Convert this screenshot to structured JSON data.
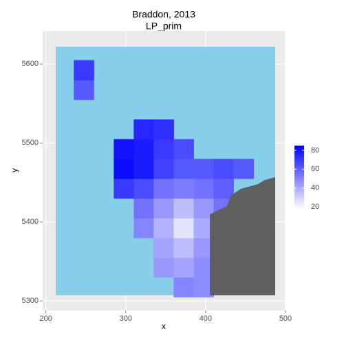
{
  "chart_data": {
    "type": "raster",
    "title": "Braddon, 2013",
    "subtitle": "LP_prim",
    "x_label": "x",
    "y_label": "y",
    "xlim": [
      196,
      500
    ],
    "ylim": [
      5288,
      5642
    ],
    "xticks": [
      200,
      300,
      400,
      500
    ],
    "yticks": [
      5300,
      5400,
      5500,
      5600
    ],
    "grid": true,
    "x": [
      222.5,
      247.5,
      272.5,
      297.5,
      322.5,
      347.5,
      372.5,
      397.5,
      422.5,
      447.5,
      472.5
    ],
    "y": [
      5317.5,
      5342.5,
      5367.5,
      5392.5,
      5417.5,
      5442.5,
      5467.5,
      5492.5,
      5517.5,
      5542.5,
      5567.5,
      5592.5
    ],
    "values": [
      [
        null,
        null,
        null,
        null,
        null,
        null,
        50,
        48,
        null,
        null,
        null
      ],
      [
        null,
        null,
        null,
        null,
        null,
        45,
        42,
        48,
        null,
        null,
        null
      ],
      [
        null,
        null,
        null,
        null,
        null,
        42,
        35,
        45,
        null,
        null,
        null
      ],
      [
        null,
        null,
        null,
        null,
        50,
        38,
        25,
        40,
        null,
        null,
        null
      ],
      [
        null,
        null,
        null,
        null,
        55,
        45,
        35,
        45,
        55,
        null,
        null
      ],
      [
        null,
        null,
        null,
        70,
        65,
        55,
        52,
        55,
        60,
        null,
        null
      ],
      [
        null,
        null,
        null,
        82,
        78,
        68,
        62,
        62,
        65,
        62,
        null
      ],
      [
        null,
        null,
        null,
        80,
        78,
        70,
        65,
        null,
        null,
        null,
        null
      ],
      [
        null,
        null,
        null,
        null,
        75,
        72,
        null,
        null,
        null,
        null,
        null
      ],
      [
        null,
        null,
        null,
        null,
        null,
        null,
        null,
        null,
        null,
        null,
        null
      ],
      [
        null,
        62,
        null,
        null,
        null,
        null,
        null,
        null,
        null,
        null,
        null
      ],
      [
        null,
        70,
        null,
        null,
        null,
        null,
        null,
        null,
        null,
        null,
        null
      ]
    ],
    "legend": {
      "limits": [
        18,
        85
      ],
      "ticks": [
        20,
        40,
        60,
        80
      ],
      "low_color": "#ffffff",
      "high_color": "#0000ff"
    }
  }
}
